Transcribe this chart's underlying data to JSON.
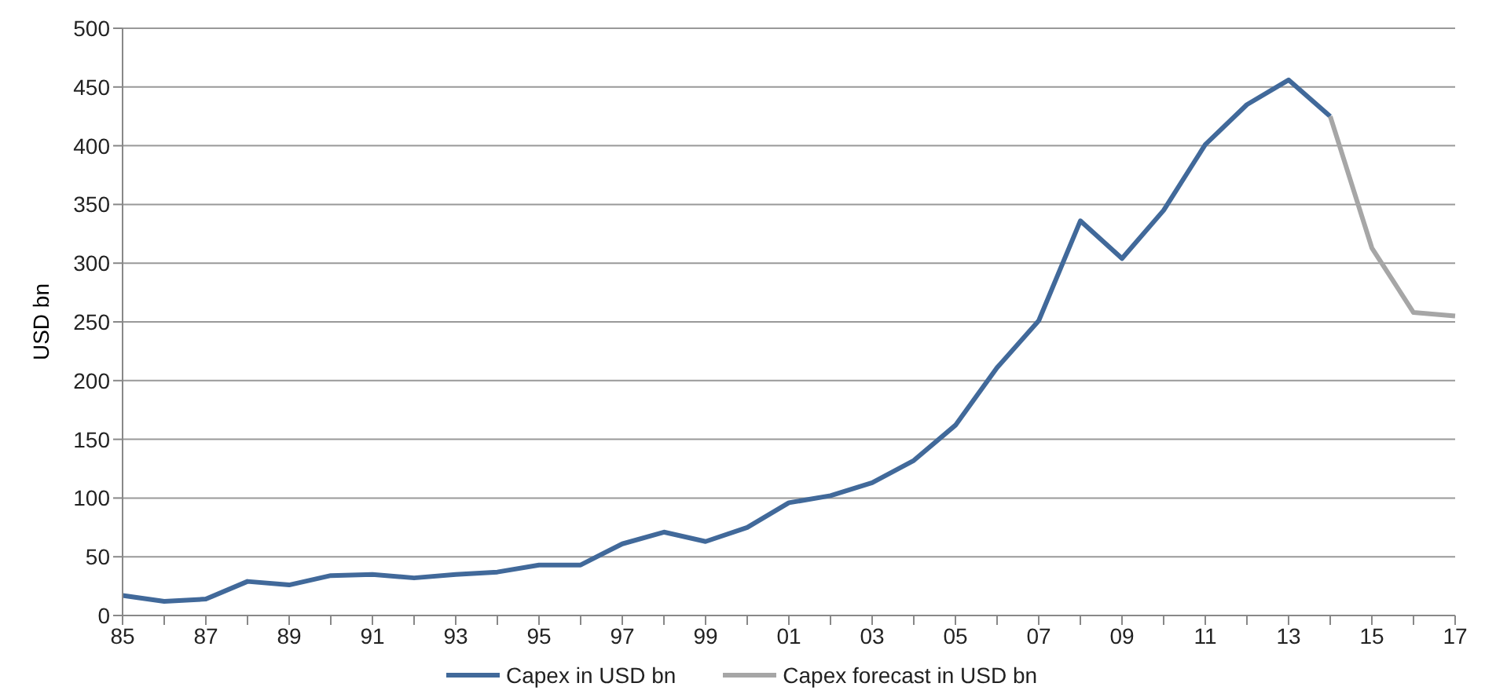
{
  "chart_data": {
    "type": "line",
    "ylabel": "USD bn",
    "categories": [
      "85",
      null,
      "87",
      null,
      "89",
      null,
      "91",
      null,
      "93",
      null,
      "95",
      null,
      "97",
      null,
      "99",
      null,
      "01",
      null,
      "03",
      null,
      "05",
      null,
      "07",
      null,
      "09",
      null,
      "11",
      null,
      "13",
      null,
      "15",
      null,
      "17"
    ],
    "series": [
      {
        "name": "Capex in USD bn",
        "color": "#41699a",
        "values": [
          17,
          12,
          14,
          29,
          26,
          34,
          35,
          32,
          35,
          37,
          43,
          43,
          61,
          71,
          63,
          75,
          96,
          102,
          113,
          132,
          162,
          211,
          251,
          336,
          304,
          345,
          401,
          435,
          456,
          425,
          null,
          null,
          null
        ]
      },
      {
        "name": "Capex forecast in USD bn",
        "color": "#a6a6a6",
        "values": [
          null,
          null,
          null,
          null,
          null,
          null,
          null,
          null,
          null,
          null,
          null,
          null,
          null,
          null,
          null,
          null,
          null,
          null,
          null,
          null,
          null,
          null,
          null,
          null,
          null,
          null,
          null,
          null,
          null,
          425,
          313,
          258,
          255
        ]
      }
    ],
    "ylim": [
      0,
      500
    ],
    "yticks": [
      0,
      50,
      100,
      150,
      200,
      250,
      300,
      350,
      400,
      450,
      500
    ],
    "grid": "y",
    "legend": "bottom",
    "marker": "none",
    "line_style": "solid"
  }
}
